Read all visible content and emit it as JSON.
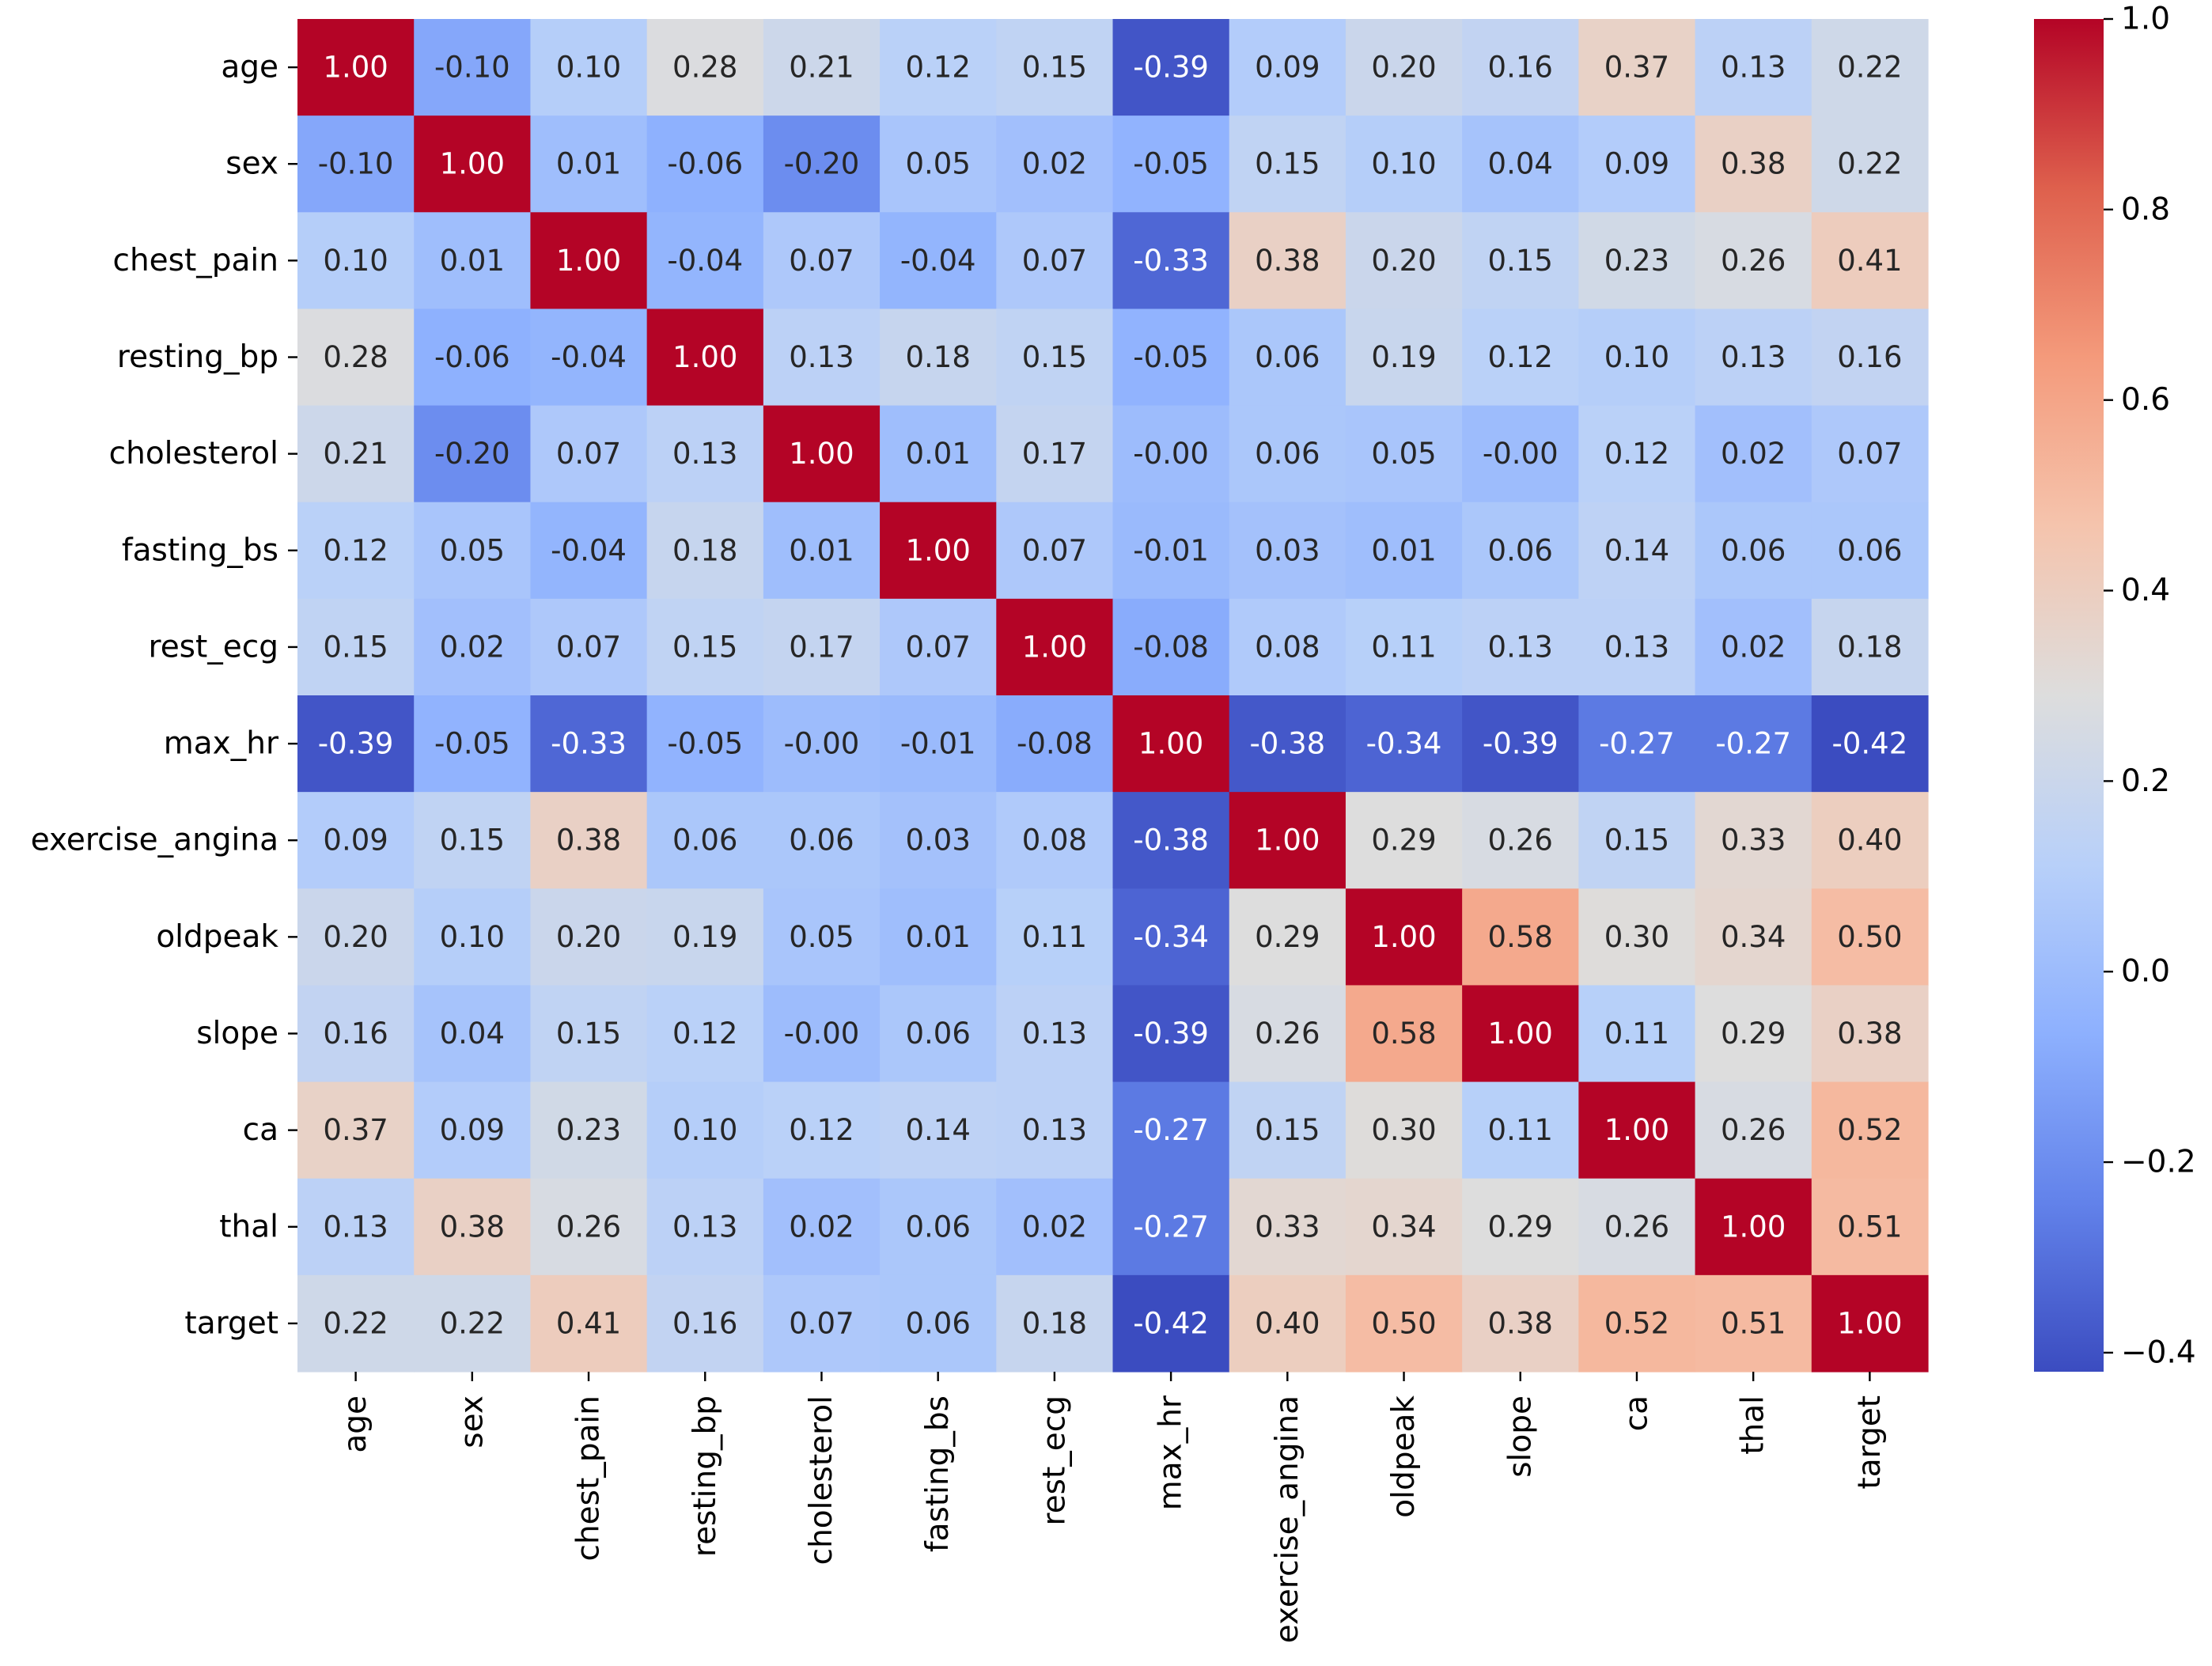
{
  "chart_data": {
    "type": "heatmap",
    "title": "",
    "xlabel": "",
    "ylabel": "",
    "rows": [
      "age",
      "sex",
      "chest_pain",
      "resting_bp",
      "cholesterol",
      "fasting_bs",
      "rest_ecg",
      "max_hr",
      "exercise_angina",
      "oldpeak",
      "slope",
      "ca",
      "thal",
      "target"
    ],
    "columns": [
      "age",
      "sex",
      "chest_pain",
      "resting_bp",
      "cholesterol",
      "fasting_bs",
      "rest_ecg",
      "max_hr",
      "exercise_angina",
      "oldpeak",
      "slope",
      "ca",
      "thal",
      "target"
    ],
    "values": [
      [
        1.0,
        -0.1,
        0.1,
        0.28,
        0.21,
        0.12,
        0.15,
        -0.39,
        0.09,
        0.2,
        0.16,
        0.37,
        0.13,
        0.22
      ],
      [
        -0.1,
        1.0,
        0.01,
        -0.06,
        -0.2,
        0.05,
        0.02,
        -0.05,
        0.15,
        0.1,
        0.04,
        0.09,
        0.38,
        0.22
      ],
      [
        0.1,
        0.01,
        1.0,
        -0.04,
        0.07,
        -0.04,
        0.07,
        -0.33,
        0.38,
        0.2,
        0.15,
        0.23,
        0.26,
        0.41
      ],
      [
        0.28,
        -0.06,
        -0.04,
        1.0,
        0.13,
        0.18,
        0.15,
        -0.05,
        0.06,
        0.19,
        0.12,
        0.1,
        0.13,
        0.16
      ],
      [
        0.21,
        -0.2,
        0.07,
        0.13,
        1.0,
        0.01,
        0.17,
        -0.0,
        0.06,
        0.05,
        -0.0,
        0.12,
        0.02,
        0.07
      ],
      [
        0.12,
        0.05,
        -0.04,
        0.18,
        0.01,
        1.0,
        0.07,
        -0.01,
        0.03,
        0.01,
        0.06,
        0.14,
        0.06,
        0.06
      ],
      [
        0.15,
        0.02,
        0.07,
        0.15,
        0.17,
        0.07,
        1.0,
        -0.08,
        0.08,
        0.11,
        0.13,
        0.13,
        0.02,
        0.18
      ],
      [
        -0.39,
        -0.05,
        -0.33,
        -0.05,
        -0.0,
        -0.01,
        -0.08,
        1.0,
        -0.38,
        -0.34,
        -0.39,
        -0.27,
        -0.27,
        -0.42
      ],
      [
        0.09,
        0.15,
        0.38,
        0.06,
        0.06,
        0.03,
        0.08,
        -0.38,
        1.0,
        0.29,
        0.26,
        0.15,
        0.33,
        0.4
      ],
      [
        0.2,
        0.1,
        0.2,
        0.19,
        0.05,
        0.01,
        0.11,
        -0.34,
        0.29,
        1.0,
        0.58,
        0.3,
        0.34,
        0.5
      ],
      [
        0.16,
        0.04,
        0.15,
        0.12,
        -0.0,
        0.06,
        0.13,
        -0.39,
        0.26,
        0.58,
        1.0,
        0.11,
        0.29,
        0.38
      ],
      [
        0.37,
        0.09,
        0.23,
        0.1,
        0.12,
        0.14,
        0.13,
        -0.27,
        0.15,
        0.3,
        0.11,
        1.0,
        0.26,
        0.52
      ],
      [
        0.13,
        0.38,
        0.26,
        0.13,
        0.02,
        0.06,
        0.02,
        -0.27,
        0.33,
        0.34,
        0.29,
        0.26,
        1.0,
        0.51
      ],
      [
        0.22,
        0.22,
        0.41,
        0.16,
        0.07,
        0.06,
        0.18,
        -0.42,
        0.4,
        0.5,
        0.38,
        0.52,
        0.51,
        1.0
      ]
    ],
    "colormap": "coolwarm",
    "vmin": -0.42,
    "vmax": 1.0,
    "colorbar": {
      "ticks": [
        1.0,
        0.8,
        0.6,
        0.4,
        0.2,
        0.0,
        -0.2,
        -0.4
      ],
      "tick_labels": [
        "1.0",
        "0.8",
        "0.6",
        "0.4",
        "0.2",
        "0.0",
        "−0.2",
        "−0.4"
      ]
    },
    "annotation_format": "0.00",
    "grid": false,
    "legend": "colorbar right"
  }
}
